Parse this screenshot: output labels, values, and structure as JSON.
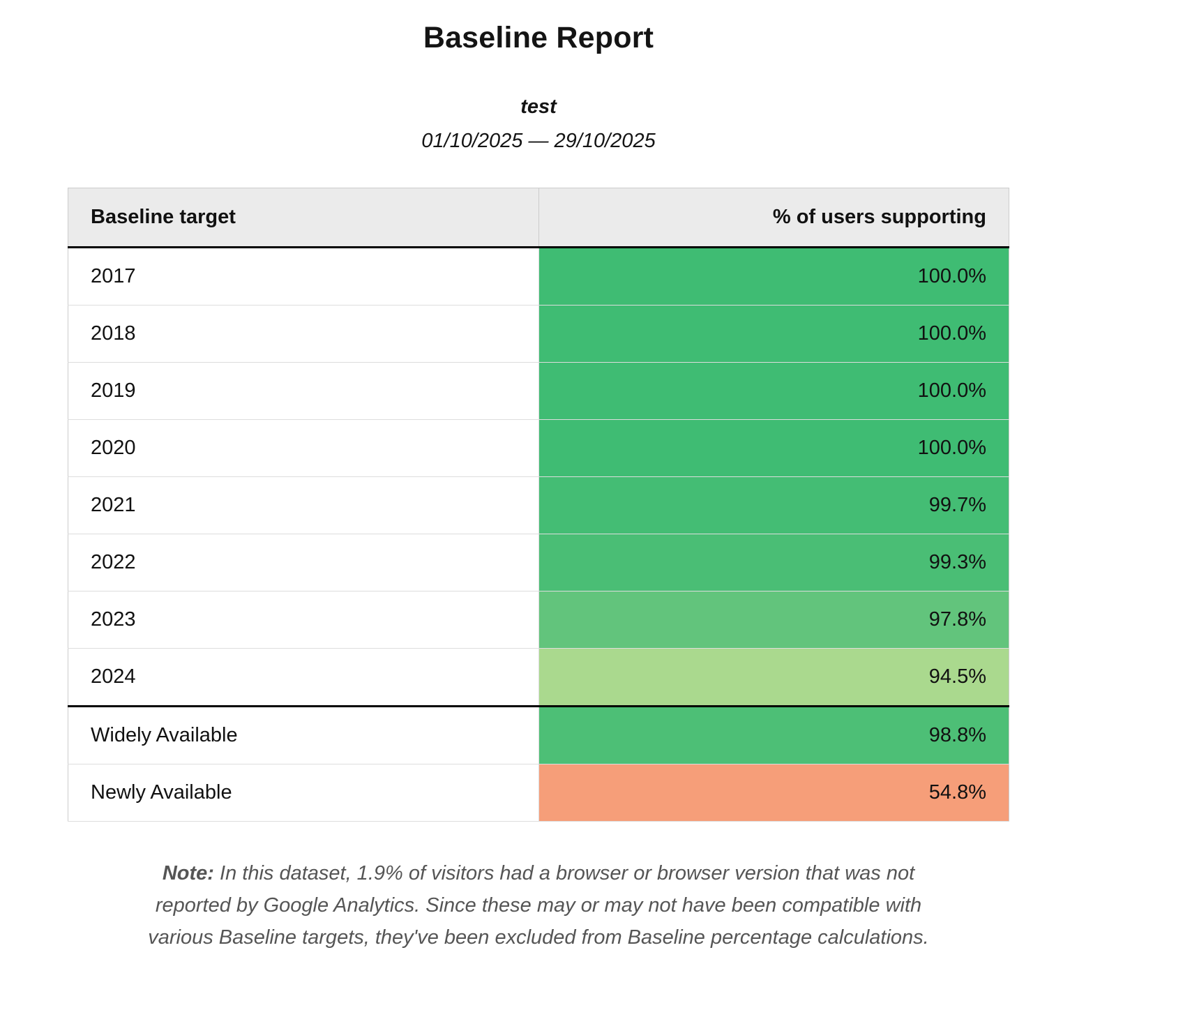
{
  "report": {
    "title": "Baseline Report",
    "subtitle": "test",
    "date_range": "01/10/2025 — 29/10/2025"
  },
  "table": {
    "columns": [
      "Baseline target",
      "% of users supporting"
    ],
    "rows": [
      {
        "label": "2017",
        "value": "100.0%",
        "color": "#3fbc73",
        "section_start": false
      },
      {
        "label": "2018",
        "value": "100.0%",
        "color": "#3fbc73",
        "section_start": false
      },
      {
        "label": "2019",
        "value": "100.0%",
        "color": "#3fbc73",
        "section_start": false
      },
      {
        "label": "2020",
        "value": "100.0%",
        "color": "#3fbc73",
        "section_start": false
      },
      {
        "label": "2021",
        "value": "99.7%",
        "color": "#44bd74",
        "section_start": false
      },
      {
        "label": "2022",
        "value": "99.3%",
        "color": "#4abe75",
        "section_start": false
      },
      {
        "label": "2023",
        "value": "97.8%",
        "color": "#62c47c",
        "section_start": false
      },
      {
        "label": "2024",
        "value": "94.5%",
        "color": "#aad98e",
        "section_start": false
      },
      {
        "label": "Widely Available",
        "value": "98.8%",
        "color": "#4dbf76",
        "section_start": true
      },
      {
        "label": "Newly Available",
        "value": "54.8%",
        "color": "#f69e79",
        "section_start": false
      }
    ]
  },
  "note": {
    "label": "Note:",
    "text": "In this dataset, 1.9% of visitors had a browser or browser version that was not reported by Google Analytics. Since these may or may not have been compatible with various Baseline targets, they've been excluded from Baseline percentage calculations."
  },
  "chart_data": {
    "type": "table",
    "title": "Baseline Report",
    "subtitle": "test",
    "date_range": "01/10/2025 — 29/10/2025",
    "columns": [
      "Baseline target",
      "% of users supporting"
    ],
    "categories": [
      "2017",
      "2018",
      "2019",
      "2020",
      "2021",
      "2022",
      "2023",
      "2024",
      "Widely Available",
      "Newly Available"
    ],
    "values": [
      100.0,
      100.0,
      100.0,
      100.0,
      99.7,
      99.3,
      97.8,
      94.5,
      98.8,
      54.8
    ],
    "value_unit": "%",
    "color_scale": {
      "high": "#3fbc73",
      "mid": "#aad98e",
      "low": "#f69e79"
    },
    "excluded_visitors_pct": 1.9
  }
}
